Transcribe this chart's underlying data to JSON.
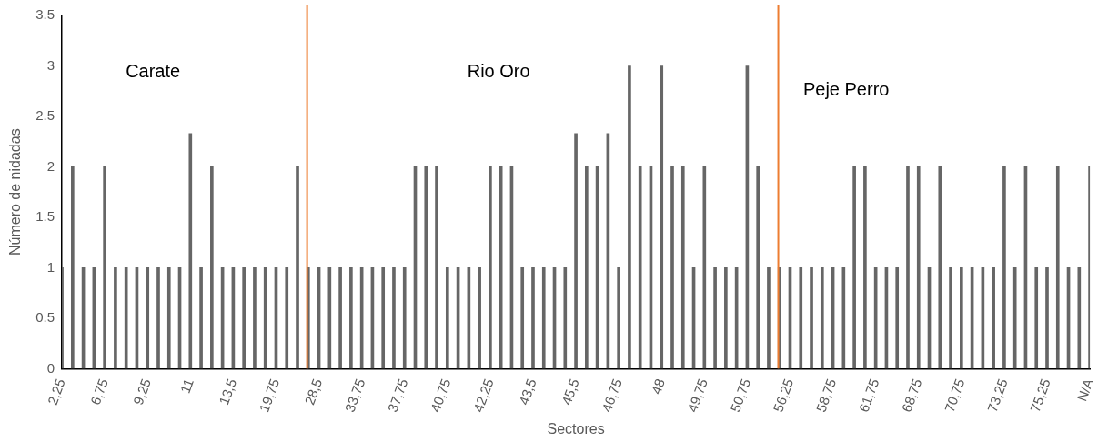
{
  "chart_data": {
    "type": "bar",
    "xlabel": "Sectores",
    "ylabel": "Número de nidadas",
    "categories": [
      "2,25",
      null,
      null,
      null,
      "6,75",
      null,
      null,
      null,
      "9,25",
      null,
      null,
      null,
      "11",
      null,
      null,
      null,
      "13,5",
      null,
      null,
      null,
      "19,75",
      null,
      null,
      null,
      "28,5",
      null,
      null,
      null,
      "33,75",
      null,
      null,
      null,
      "37,75",
      null,
      null,
      null,
      "40,75",
      null,
      null,
      null,
      "42,25",
      null,
      null,
      null,
      "43,5",
      null,
      null,
      null,
      "45,5",
      null,
      null,
      null,
      "46,75",
      null,
      null,
      null,
      "48",
      null,
      null,
      null,
      "49,75",
      null,
      null,
      null,
      "50,75",
      null,
      null,
      null,
      "56,25",
      null,
      null,
      null,
      "58,75",
      null,
      null,
      null,
      "61,75",
      null,
      null,
      null,
      "68,75",
      null,
      null,
      null,
      "70,75",
      null,
      null,
      null,
      "73,25",
      null,
      null,
      null,
      "75,25",
      null,
      null,
      null,
      "N/A"
    ],
    "values": [
      1,
      2,
      1,
      1,
      2,
      1,
      1,
      1,
      1,
      1,
      1,
      1,
      2.33,
      1,
      2,
      1,
      1,
      1,
      1,
      1,
      1,
      1,
      2,
      1,
      1,
      1,
      1,
      1,
      1,
      1,
      1,
      1,
      1,
      2,
      2,
      2,
      1,
      1,
      1,
      1,
      2,
      2,
      2,
      1,
      1,
      1,
      1,
      1,
      2.33,
      2,
      2,
      2.33,
      1,
      3,
      2,
      2,
      3,
      2,
      2,
      1,
      2,
      1,
      1,
      1,
      3,
      2,
      1,
      1,
      1,
      1,
      1,
      1,
      1,
      1,
      2,
      2,
      1,
      1,
      1,
      2,
      2,
      1,
      2,
      1,
      1,
      1,
      1,
      1,
      2,
      1,
      2,
      1,
      1,
      2,
      1,
      1,
      2
    ],
    "color": "#666666",
    "ylim": [
      0,
      3.5
    ],
    "yticks": [
      0,
      0.5,
      1,
      1.5,
      2,
      2.5,
      3,
      3.5
    ],
    "grid": false,
    "legend": false,
    "annotations": [
      "Carate",
      "Rio Oro",
      "Peje Perro"
    ]
  }
}
